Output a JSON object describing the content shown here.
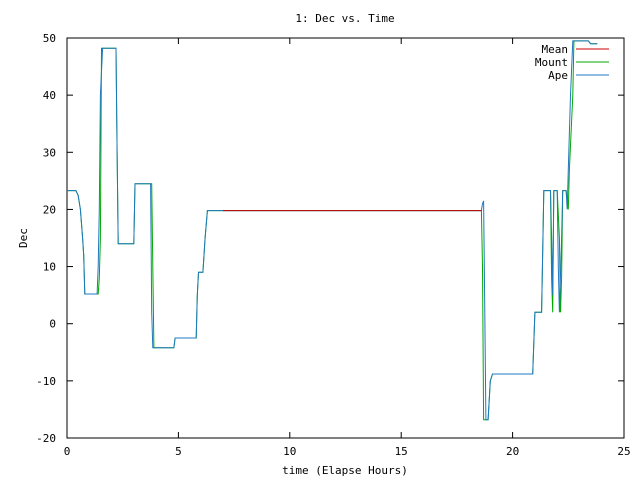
{
  "chart_data": {
    "type": "line",
    "title": "1: Dec vs. Time",
    "xlabel": "time (Elapse Hours)",
    "ylabel": "Dec",
    "xlim": [
      0,
      25
    ],
    "ylim": [
      -20,
      50
    ],
    "xticks": [
      0,
      5,
      10,
      15,
      20,
      25
    ],
    "yticks": [
      -20,
      -10,
      0,
      10,
      20,
      30,
      40,
      50
    ],
    "grid": false,
    "legend_position": "top-right",
    "series": [
      {
        "name": "Mean",
        "color": "#cc0000",
        "points": [
          [
            7.0,
            19.8
          ],
          [
            18.6,
            19.8
          ]
        ]
      },
      {
        "name": "Mount",
        "color": "#00aa00",
        "points": [
          [
            0,
            23.3
          ],
          [
            0.4,
            23.3
          ],
          [
            0.5,
            22.5
          ],
          [
            0.6,
            20
          ],
          [
            0.7,
            15
          ],
          [
            0.75,
            12
          ],
          [
            0.8,
            5.2
          ],
          [
            1.4,
            5.2
          ],
          [
            1.45,
            8
          ],
          [
            1.5,
            15
          ],
          [
            1.55,
            48.2
          ],
          [
            2.2,
            48.2
          ],
          [
            2.25,
            30
          ],
          [
            2.3,
            14
          ],
          [
            3.0,
            14
          ],
          [
            3.05,
            24.5
          ],
          [
            3.7,
            24.5
          ],
          [
            3.8,
            24.5
          ],
          [
            3.85,
            10
          ],
          [
            3.9,
            -4.2
          ],
          [
            4.6,
            -4.2
          ],
          [
            4.8,
            -4.2
          ],
          [
            4.85,
            -2.5
          ],
          [
            5.8,
            -2.5
          ],
          [
            5.85,
            5
          ],
          [
            5.9,
            9
          ],
          [
            6.1,
            9
          ],
          [
            6.2,
            15
          ],
          [
            6.3,
            19.8
          ],
          [
            18.6,
            19.8
          ],
          [
            18.65,
            10
          ],
          [
            18.7,
            -16.8
          ],
          [
            18.9,
            -16.8
          ],
          [
            19.0,
            -10
          ],
          [
            19.1,
            -8.8
          ],
          [
            20.9,
            -8.8
          ],
          [
            21.0,
            2
          ],
          [
            21.3,
            2
          ],
          [
            21.4,
            23.3
          ],
          [
            21.7,
            23.3
          ],
          [
            21.75,
            8
          ],
          [
            21.8,
            2
          ],
          [
            21.85,
            23.3
          ],
          [
            22.0,
            23.3
          ],
          [
            22.1,
            15
          ],
          [
            22.15,
            2
          ],
          [
            22.2,
            8
          ],
          [
            22.25,
            23.3
          ],
          [
            22.4,
            23.3
          ],
          [
            22.5,
            20
          ],
          [
            22.55,
            27
          ],
          [
            22.7,
            40
          ],
          [
            22.75,
            49.5
          ],
          [
            23.4,
            49.5
          ],
          [
            23.5,
            49
          ],
          [
            23.8,
            49
          ]
        ]
      },
      {
        "name": "Ape",
        "color": "#1f78c0",
        "points": [
          [
            0,
            23.3
          ],
          [
            0.4,
            23.3
          ],
          [
            0.5,
            22.5
          ],
          [
            0.6,
            20
          ],
          [
            0.7,
            15
          ],
          [
            0.75,
            12
          ],
          [
            0.8,
            5.2
          ],
          [
            1.35,
            5.2
          ],
          [
            1.4,
            10
          ],
          [
            1.45,
            20
          ],
          [
            1.5,
            40
          ],
          [
            1.6,
            48.2
          ],
          [
            2.2,
            48.2
          ],
          [
            2.25,
            30
          ],
          [
            2.3,
            14
          ],
          [
            3.0,
            14
          ],
          [
            3.05,
            24.5
          ],
          [
            3.7,
            24.5
          ],
          [
            3.75,
            24.5
          ],
          [
            3.8,
            2
          ],
          [
            3.85,
            -4.2
          ],
          [
            4.6,
            -4.2
          ],
          [
            4.8,
            -4.2
          ],
          [
            4.85,
            -2.5
          ],
          [
            5.8,
            -2.5
          ],
          [
            5.85,
            5
          ],
          [
            5.9,
            9
          ],
          [
            6.1,
            9
          ],
          [
            6.2,
            15
          ],
          [
            6.3,
            19.8
          ],
          [
            18.6,
            19.8
          ],
          [
            18.65,
            21
          ],
          [
            18.7,
            21.5
          ],
          [
            18.75,
            2
          ],
          [
            18.8,
            -16.8
          ],
          [
            18.9,
            -16.8
          ],
          [
            19.0,
            -10
          ],
          [
            19.1,
            -8.8
          ],
          [
            20.9,
            -8.8
          ],
          [
            21.0,
            2
          ],
          [
            21.3,
            2
          ],
          [
            21.4,
            23.3
          ],
          [
            21.7,
            23.3
          ],
          [
            21.75,
            15
          ],
          [
            21.8,
            5
          ],
          [
            21.85,
            23.3
          ],
          [
            22.0,
            23.3
          ],
          [
            22.05,
            10
          ],
          [
            22.1,
            2
          ],
          [
            22.2,
            15
          ],
          [
            22.25,
            23.3
          ],
          [
            22.4,
            23.3
          ],
          [
            22.45,
            20
          ],
          [
            22.5,
            27
          ],
          [
            22.6,
            40
          ],
          [
            22.7,
            49.5
          ],
          [
            23.4,
            49.5
          ],
          [
            23.5,
            49
          ],
          [
            23.8,
            49
          ]
        ]
      }
    ]
  }
}
